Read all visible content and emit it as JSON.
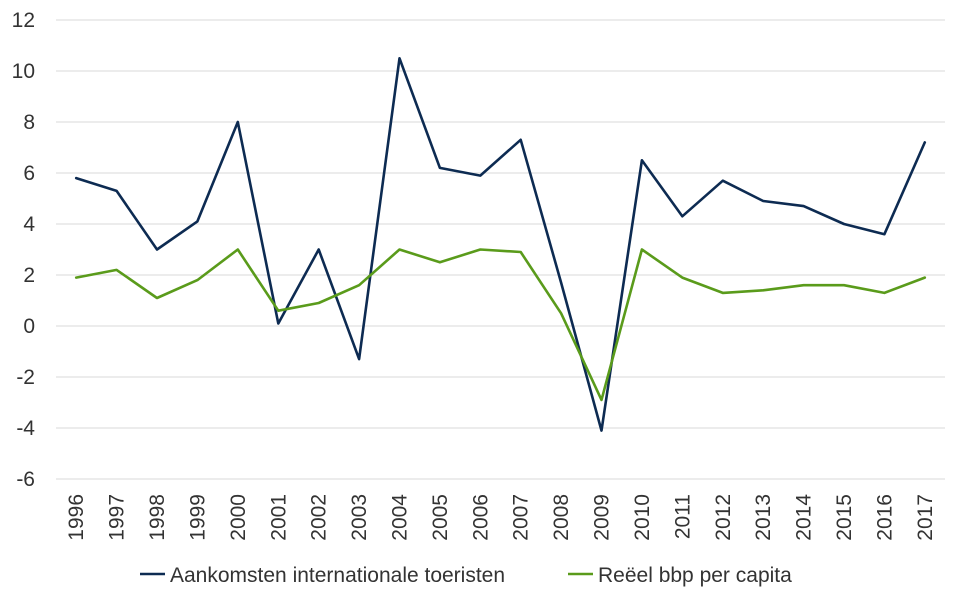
{
  "chart_data": {
    "type": "line",
    "x": [
      "1996",
      "1997",
      "1998",
      "1999",
      "2000",
      "2001",
      "2002",
      "2003",
      "2004",
      "2005",
      "2006",
      "2007",
      "2008",
      "2009",
      "2010",
      "2011",
      "2012",
      "2013",
      "2014",
      "2015",
      "2016",
      "2017"
    ],
    "yticks": [
      "12",
      "10",
      "8",
      "6",
      "4",
      "2",
      "0",
      "-2",
      "-4",
      "-6"
    ],
    "ylim": [
      -6,
      12
    ],
    "grid": true,
    "legend_position": "bottom",
    "series": [
      {
        "name": "Aankomsten internationale toeristen",
        "color": "#0d2b52",
        "values": [
          5.8,
          5.3,
          3.0,
          4.1,
          8.0,
          0.1,
          3.0,
          -1.3,
          10.5,
          6.2,
          5.9,
          7.3,
          1.7,
          -4.1,
          6.5,
          4.3,
          5.7,
          4.9,
          4.7,
          4.0,
          3.6,
          7.2
        ]
      },
      {
        "name": "Reëel bbp per capita",
        "color": "#5a9b1b",
        "values": [
          1.9,
          2.2,
          1.1,
          1.8,
          3.0,
          0.6,
          0.9,
          1.6,
          3.0,
          2.5,
          3.0,
          2.9,
          0.5,
          -2.9,
          3.0,
          1.9,
          1.3,
          1.4,
          1.6,
          1.6,
          1.3,
          1.9
        ]
      }
    ]
  }
}
